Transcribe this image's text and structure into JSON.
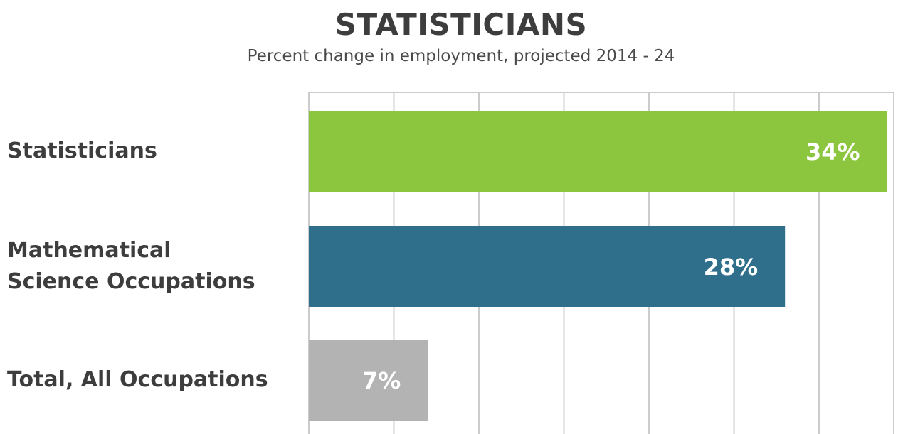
{
  "chart_data": {
    "type": "bar",
    "orientation": "horizontal",
    "title": "STATISTICIANS",
    "subtitle": "Percent change in employment, projected 2014 - 24",
    "categories": [
      "Statisticians",
      "Mathematical Science Occupations",
      "Total, All Occupations"
    ],
    "category_lines": [
      [
        "Statisticians"
      ],
      [
        "Mathematical",
        "Science Occupations"
      ],
      [
        "Total, All Occupations"
      ]
    ],
    "values": [
      34,
      28,
      7
    ],
    "data_labels": [
      "34%",
      "28%",
      "7%"
    ],
    "colors": [
      "#8cc63f",
      "#2f6f8c",
      "#b3b3b3"
    ],
    "xlim": [
      0,
      35
    ],
    "grid": true,
    "gridline_step": 5
  }
}
